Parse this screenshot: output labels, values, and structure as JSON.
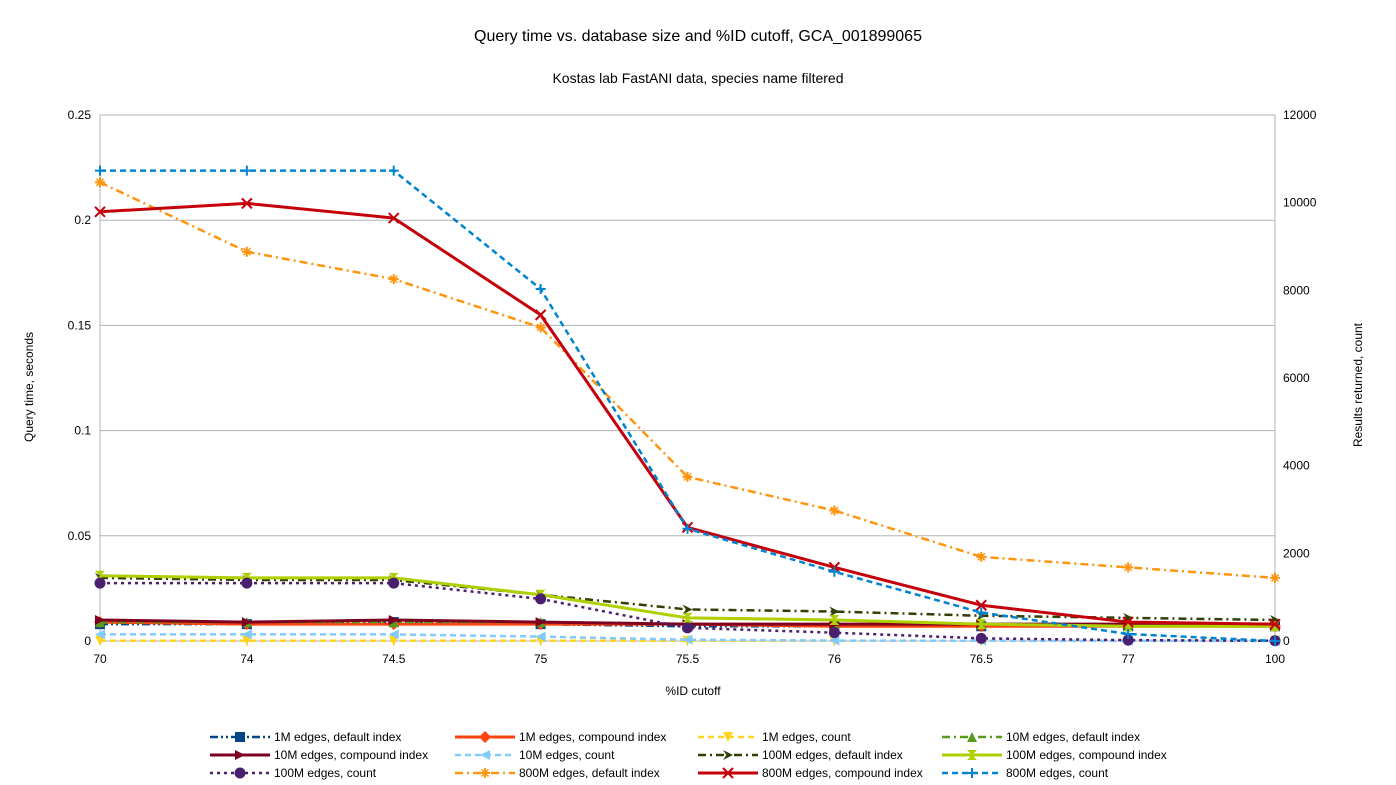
{
  "chart_data": {
    "type": "line",
    "title": "Query time vs. database size and %ID cutoff, GCA_001899065",
    "subtitle": "Kostas lab FastANI data, species name filtered",
    "xlabel": "%ID cutoff",
    "ylabel": "Query time, seconds",
    "y2label": "Results returned, count",
    "categories": [
      "70",
      "74",
      "74.5",
      "75",
      "75.5",
      "76",
      "76.5",
      "77",
      "100"
    ],
    "ylim": [
      0,
      0.25
    ],
    "yticks": [
      0,
      0.05,
      0.1,
      0.15,
      0.2,
      0.25
    ],
    "ytick_labels": [
      "0",
      "0.05",
      "0.1",
      "0.15",
      "0.2",
      "0.25"
    ],
    "y2lim": [
      0,
      12000
    ],
    "y2ticks": [
      0,
      2000,
      4000,
      6000,
      8000,
      10000,
      12000
    ],
    "y2tick_labels": [
      "0",
      "2000",
      "4000",
      "6000",
      "8000",
      "10000",
      "12000"
    ],
    "grid": "horizontal",
    "legend_position": "bottom",
    "series": [
      {
        "name": "1M edges, default index",
        "axis": "left",
        "color": "#004586",
        "dash": "dashdotdot",
        "marker": "square",
        "values": [
          0.008,
          0.008,
          0.009,
          0.008,
          0.007,
          0.007,
          0.007,
          0.007,
          0.007
        ]
      },
      {
        "name": "1M edges, compound index",
        "axis": "left",
        "color": "#ff420e",
        "dash": "solid",
        "marker": "diamond",
        "values": [
          0.009,
          0.008,
          0.008,
          0.008,
          0.008,
          0.007,
          0.007,
          0.007,
          0.007
        ]
      },
      {
        "name": "1M edges, count",
        "axis": "right",
        "color": "#ffd320",
        "dash": "dash",
        "marker": "triangle-down",
        "values": [
          5,
          5,
          5,
          5,
          5,
          5,
          5,
          5,
          5
        ]
      },
      {
        "name": "10M edges, default index",
        "axis": "left",
        "color": "#579d1c",
        "dash": "dashdot",
        "marker": "triangle-up",
        "values": [
          0.009,
          0.009,
          0.009,
          0.009,
          0.008,
          0.008,
          0.008,
          0.008,
          0.008
        ]
      },
      {
        "name": "10M edges, compound index",
        "axis": "left",
        "color": "#7e0021",
        "dash": "solid",
        "marker": "triangle-right",
        "values": [
          0.01,
          0.009,
          0.01,
          0.009,
          0.008,
          0.008,
          0.008,
          0.008,
          0.008
        ]
      },
      {
        "name": "10M edges, count",
        "axis": "right",
        "color": "#83caff",
        "dash": "dash",
        "marker": "triangle-left",
        "values": [
          150,
          150,
          150,
          100,
          30,
          10,
          5,
          2,
          1
        ]
      },
      {
        "name": "100M edges, default index",
        "axis": "left",
        "color": "#314004",
        "dash": "dashdot",
        "marker": "arrow",
        "values": [
          0.03,
          0.029,
          0.029,
          0.022,
          0.015,
          0.014,
          0.012,
          0.011,
          0.01
        ]
      },
      {
        "name": "100M edges, compound index",
        "axis": "left",
        "color": "#aecf00",
        "dash": "solid",
        "marker": "hourglass",
        "values": [
          0.031,
          0.03,
          0.03,
          0.022,
          0.011,
          0.01,
          0.008,
          0.007,
          0.007
        ]
      },
      {
        "name": "100M edges, count",
        "axis": "right",
        "color": "#4b1f6f",
        "dash": "dot",
        "marker": "circle",
        "values": [
          1320,
          1320,
          1320,
          960,
          300,
          190,
          60,
          20,
          5
        ]
      },
      {
        "name": "800M edges, default index",
        "axis": "left",
        "color": "#ff950e",
        "dash": "dashdot",
        "marker": "star",
        "values": [
          0.218,
          0.185,
          0.172,
          0.149,
          0.078,
          0.062,
          0.04,
          0.035,
          0.03
        ]
      },
      {
        "name": "800M edges, compound index",
        "axis": "left",
        "color": "#c5000b",
        "dash": "solid",
        "marker": "x",
        "values": [
          0.204,
          0.208,
          0.201,
          0.155,
          0.054,
          0.035,
          0.017,
          0.009,
          0.008
        ]
      },
      {
        "name": "800M edges, count",
        "axis": "right",
        "color": "#0084d1",
        "dash": "dash",
        "marker": "plus",
        "values": [
          10730,
          10730,
          10730,
          8030,
          2560,
          1580,
          650,
          160,
          0
        ]
      }
    ]
  }
}
